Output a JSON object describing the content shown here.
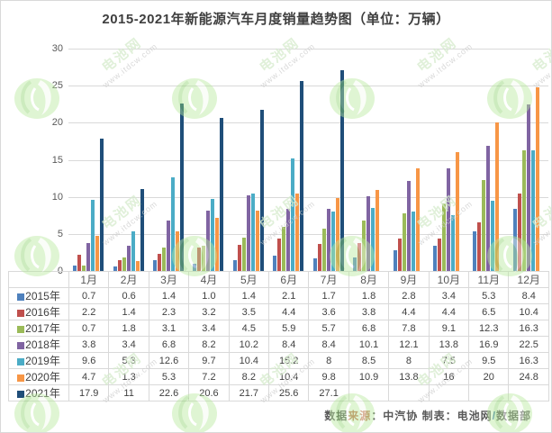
{
  "title": "2015-2021年新能源汽车月度销量趋势图（单位：万辆）",
  "watermark": {
    "logo_text": "电池网",
    "site_text": "www.itdcw.com"
  },
  "chart_data": {
    "type": "bar",
    "title": "2015-2021年新能源汽车月度销量趋势图",
    "unit_label": "万辆",
    "categories": [
      "1月",
      "2月",
      "3月",
      "4月",
      "5月",
      "6月",
      "7月",
      "8月",
      "9月",
      "10月",
      "11月",
      "12月"
    ],
    "series": [
      {
        "name": "2015年",
        "color": "#4F81BD",
        "values": [
          "0.7",
          "0.6",
          "1.4",
          "1.0",
          "1.4",
          "2.1",
          "1.7",
          "1.8",
          "2.8",
          "3.4",
          "5.3",
          "8.4"
        ]
      },
      {
        "name": "2016年",
        "color": "#C0504D",
        "values": [
          "2.2",
          "1.4",
          "2.3",
          "3.2",
          "3.5",
          "4.4",
          "3.6",
          "3.8",
          "4.4",
          "4.4",
          "6.5",
          "10.4"
        ]
      },
      {
        "name": "2017年",
        "color": "#9BBB59",
        "values": [
          "0.7",
          "1.8",
          "3.1",
          "3.4",
          "4.5",
          "5.9",
          "5.7",
          "6.8",
          "7.8",
          "9.1",
          "12.3",
          "16.3"
        ]
      },
      {
        "name": "2018年",
        "color": "#8064A2",
        "values": [
          "3.8",
          "3.4",
          "6.8",
          "8.2",
          "10.2",
          "8.4",
          "8.4",
          "10.1",
          "12.1",
          "13.8",
          "16.9",
          "22.5"
        ]
      },
      {
        "name": "2019年",
        "color": "#4BACC6",
        "values": [
          "9.6",
          "5.3",
          "12.6",
          "9.7",
          "10.4",
          "15.2",
          "8",
          "8.5",
          "8",
          "7.5",
          "9.5",
          "16.3"
        ]
      },
      {
        "name": "2020年",
        "color": "#F79646",
        "values": [
          "4.7",
          "1.3",
          "5.3",
          "7.2",
          "8.2",
          "10.4",
          "9.8",
          "10.9",
          "13.8",
          "16",
          "20",
          "24.8"
        ]
      },
      {
        "name": "2021年",
        "color": "#1F4E79",
        "values": [
          "17.9",
          "11",
          "22.6",
          "20.6",
          "21.7",
          "25.6",
          "27.1",
          "",
          "",
          "",
          "",
          ""
        ]
      }
    ],
    "ylim": [
      0,
      30
    ],
    "yticks": [
      0,
      5,
      10,
      15,
      20,
      25,
      30
    ],
    "grid": true,
    "legend_position": "table-left-column"
  },
  "footer": {
    "segments": [
      {
        "text": "数据",
        "color": "#595959"
      },
      {
        "text": "来源",
        "color": "#C0714A"
      },
      {
        "text": "：中汽协  制表：电池网",
        "color": "#595959"
      },
      {
        "text": "/",
        "color": "#4F81BD"
      },
      {
        "text": "数据部",
        "color": "#595959"
      }
    ]
  }
}
